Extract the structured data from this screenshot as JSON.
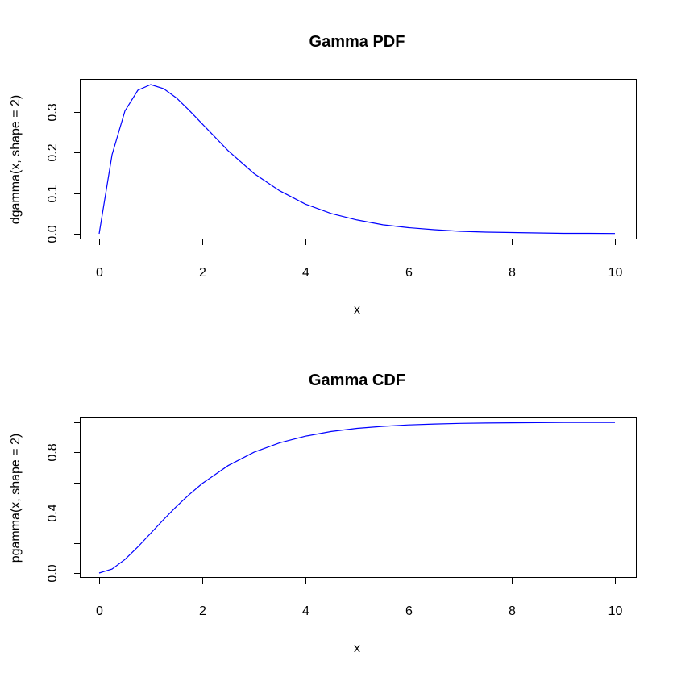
{
  "chart_data": [
    {
      "type": "line",
      "title": "Gamma PDF",
      "xlabel": "x",
      "ylabel": "dgamma(x, shape = 2)",
      "xlim": [
        0,
        10
      ],
      "ylim": [
        0,
        0.368
      ],
      "xticks": [
        0,
        2,
        4,
        6,
        8,
        10
      ],
      "xtick_labels": [
        "0",
        "2",
        "4",
        "6",
        "8",
        "10"
      ],
      "yticks": [
        0.0,
        0.1,
        0.2,
        0.3
      ],
      "ytick_labels": [
        "0.0",
        "0.1",
        "0.2",
        "0.3"
      ],
      "grid": false,
      "color": "#0000ff",
      "series": [
        {
          "x": [
            0,
            0.25,
            0.5,
            0.75,
            1,
            1.25,
            1.5,
            1.75,
            2,
            2.5,
            3,
            3.5,
            4,
            4.5,
            5,
            5.5,
            6,
            6.5,
            7,
            7.5,
            8,
            8.5,
            9,
            9.5,
            10
          ],
          "values": [
            0,
            0.195,
            0.303,
            0.354,
            0.368,
            0.358,
            0.335,
            0.304,
            0.271,
            0.205,
            0.149,
            0.106,
            0.073,
            0.05,
            0.034,
            0.022,
            0.015,
            0.01,
            0.006,
            0.004,
            0.003,
            0.002,
            0.001,
            0.001,
            0.0005
          ]
        }
      ]
    },
    {
      "type": "line",
      "title": "Gamma CDF",
      "xlabel": "x",
      "ylabel": "pgamma(x, shape = 2)",
      "xlim": [
        0,
        10
      ],
      "ylim": [
        0,
        1
      ],
      "xticks": [
        0,
        2,
        4,
        6,
        8,
        10
      ],
      "xtick_labels": [
        "0",
        "2",
        "4",
        "6",
        "8",
        "10"
      ],
      "yticks": [
        0.0,
        0.2,
        0.4,
        0.6,
        0.8,
        1.0
      ],
      "ytick_labels": [
        "0.0",
        "",
        "0.4",
        "",
        "0.8",
        ""
      ],
      "grid": false,
      "color": "#0000ff",
      "series": [
        {
          "x": [
            0,
            0.25,
            0.5,
            0.75,
            1,
            1.25,
            1.5,
            1.75,
            2,
            2.5,
            3,
            3.5,
            4,
            4.5,
            5,
            5.5,
            6,
            6.5,
            7,
            7.5,
            8,
            8.5,
            9,
            9.5,
            10
          ],
          "values": [
            0,
            0.026,
            0.09,
            0.173,
            0.264,
            0.355,
            0.442,
            0.522,
            0.594,
            0.713,
            0.801,
            0.864,
            0.908,
            0.939,
            0.96,
            0.973,
            0.983,
            0.989,
            0.993,
            0.995,
            0.997,
            0.998,
            0.999,
            0.9993,
            0.9995
          ]
        }
      ]
    }
  ]
}
